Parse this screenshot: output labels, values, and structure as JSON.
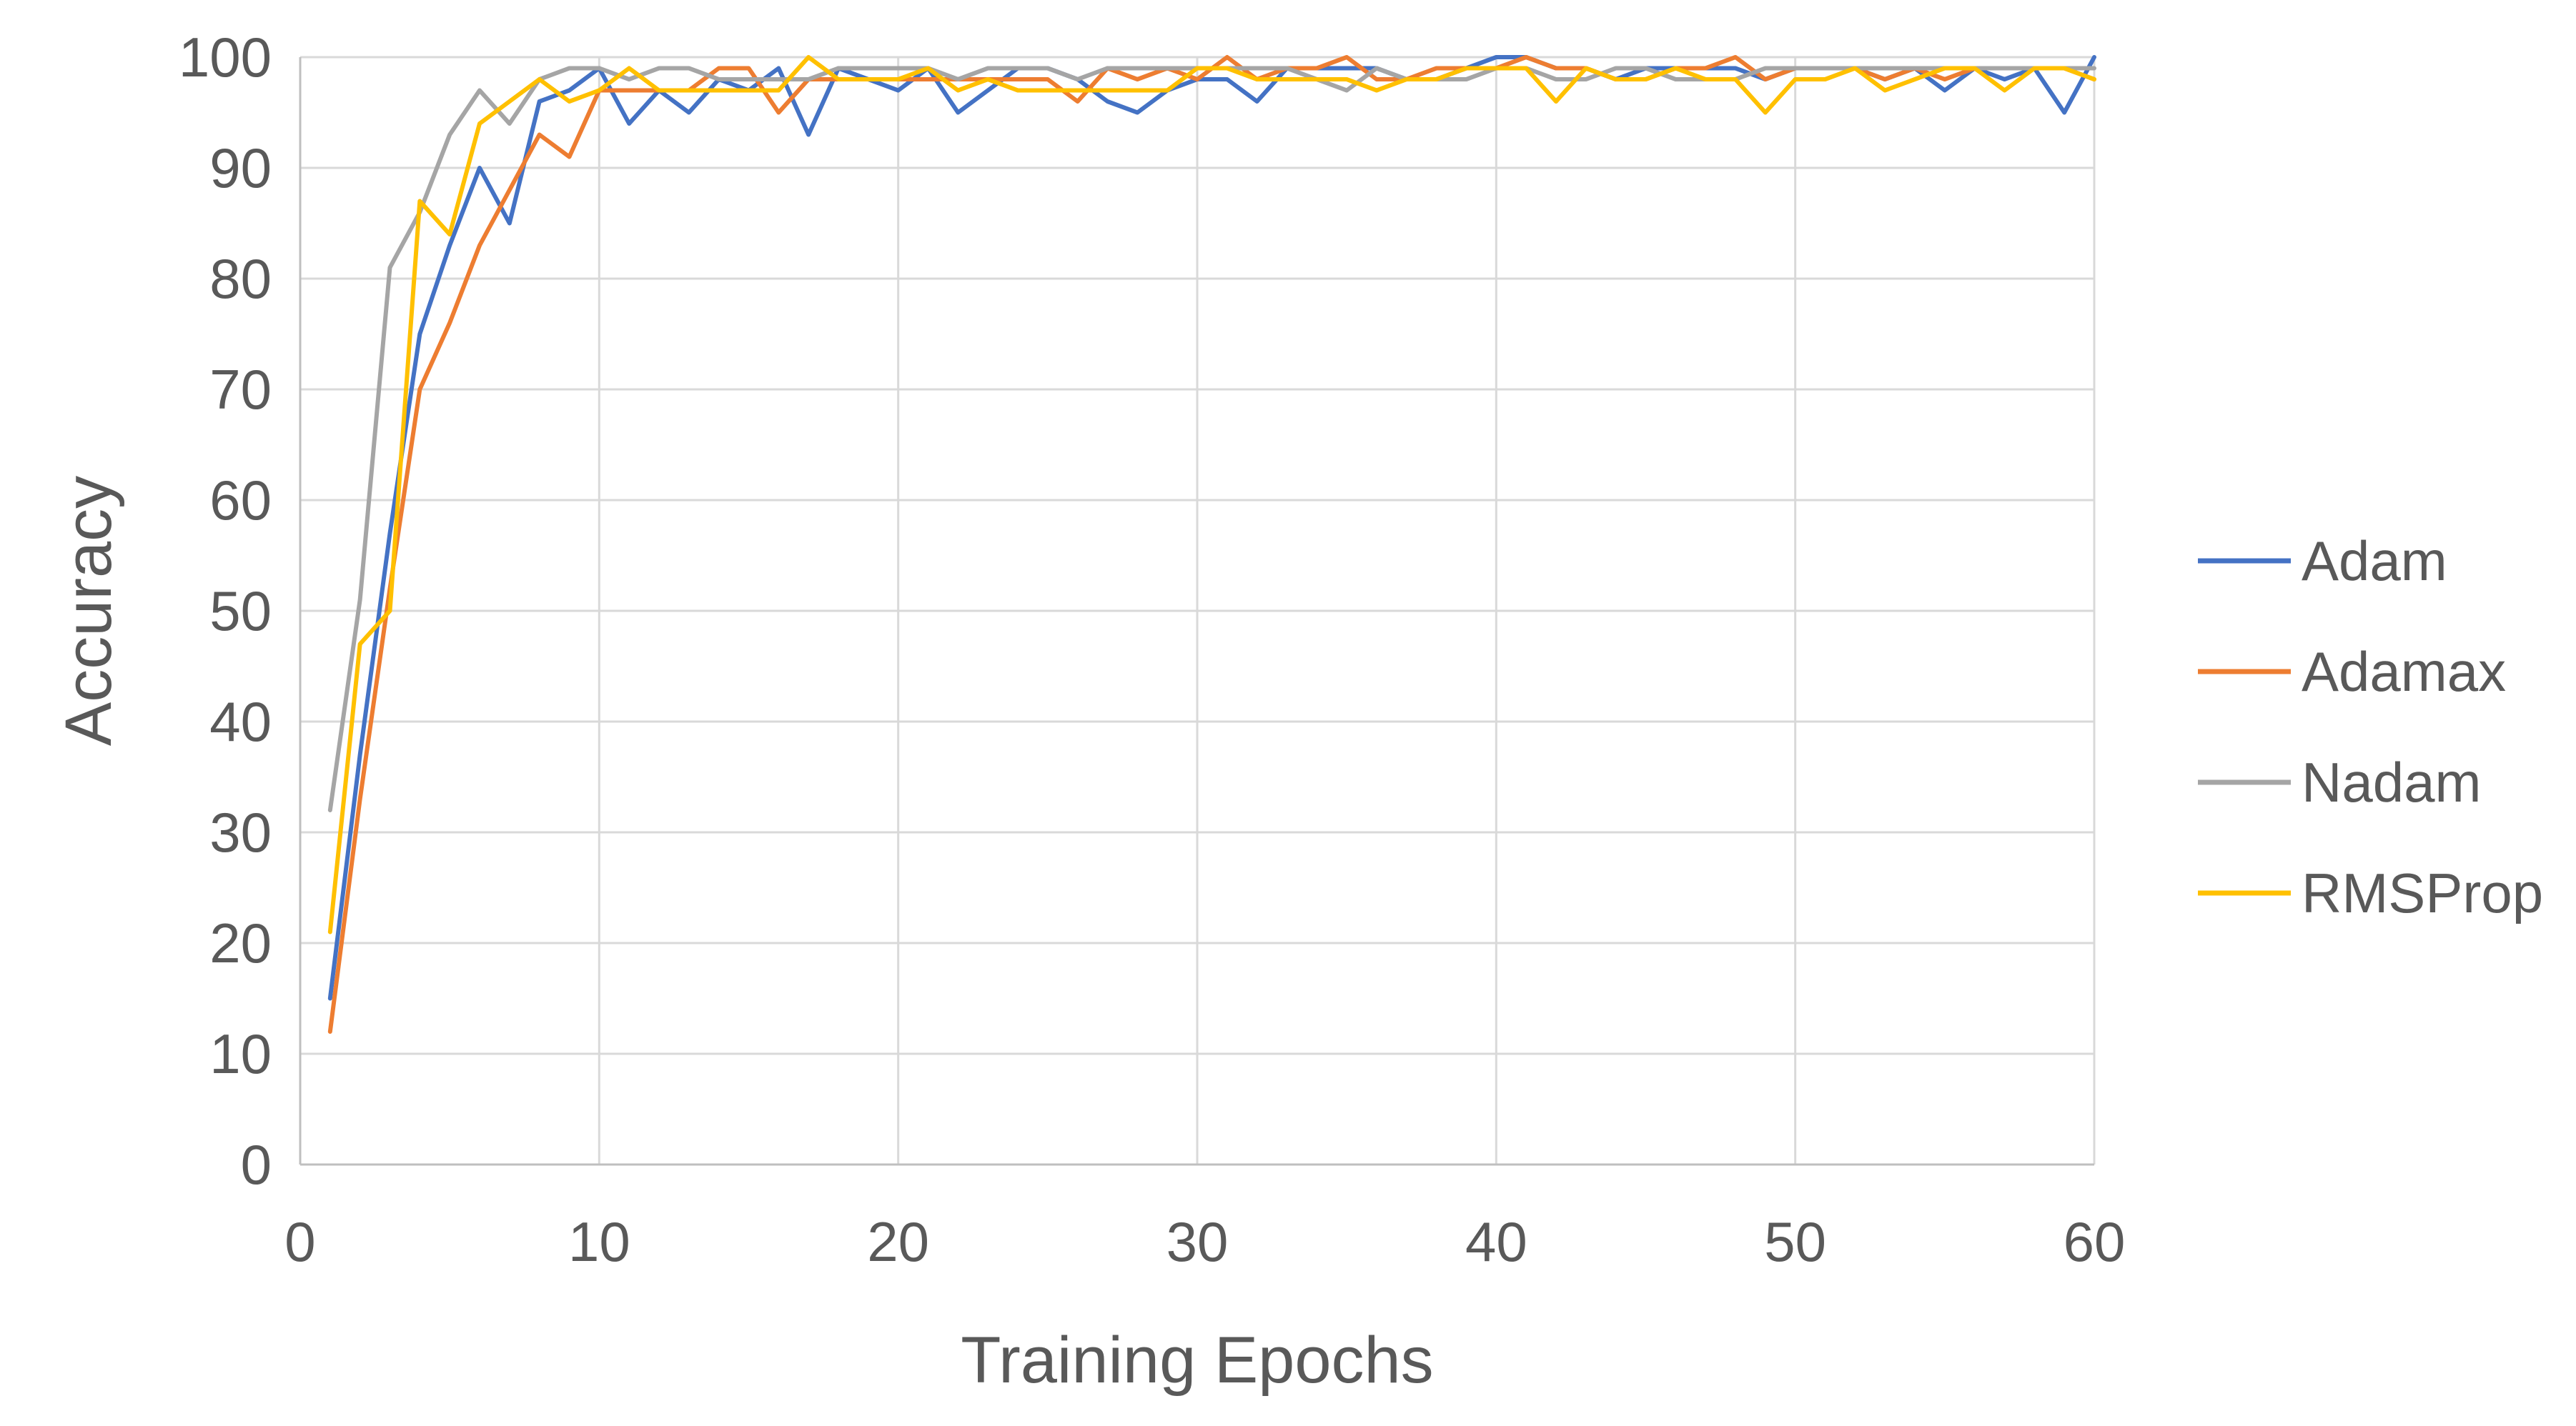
{
  "chart_data": {
    "type": "line",
    "title": "",
    "xlabel": "Training Epochs",
    "ylabel": "Accuracy",
    "xlim": [
      0,
      60
    ],
    "ylim": [
      0,
      100
    ],
    "x_ticks": [
      "0",
      "10",
      "20",
      "30",
      "40",
      "50",
      "60"
    ],
    "y_ticks": [
      "0",
      "10",
      "20",
      "30",
      "40",
      "50",
      "60",
      "70",
      "80",
      "90",
      "100"
    ],
    "grid": true,
    "legend_position": "right",
    "x": [
      1,
      2,
      3,
      4,
      5,
      6,
      7,
      8,
      9,
      10,
      11,
      12,
      13,
      14,
      15,
      16,
      17,
      18,
      19,
      20,
      21,
      22,
      23,
      24,
      25,
      26,
      27,
      28,
      29,
      30,
      31,
      32,
      33,
      34,
      35,
      36,
      37,
      38,
      39,
      40,
      41,
      42,
      43,
      44,
      45,
      46,
      47,
      48,
      49,
      50,
      51,
      52,
      53,
      54,
      55,
      56,
      57,
      58,
      59,
      60
    ],
    "series": [
      {
        "name": "Adam",
        "color": "#4472C4",
        "values": [
          15,
          37,
          57,
          75,
          83,
          90,
          85,
          96,
          97,
          99,
          94,
          97,
          95,
          98,
          97,
          99,
          93,
          99,
          98,
          97,
          99,
          95,
          97,
          99,
          99,
          98,
          96,
          95,
          97,
          98,
          98,
          96,
          99,
          99,
          99,
          99,
          98,
          98,
          99,
          100,
          100,
          99,
          99,
          98,
          99,
          99,
          99,
          99,
          98,
          99,
          99,
          99,
          98,
          99,
          97,
          99,
          98,
          99,
          95,
          100
        ]
      },
      {
        "name": "Adamax",
        "color": "#ED7D31",
        "values": [
          12,
          33,
          52,
          70,
          76,
          83,
          88,
          93,
          91,
          97,
          97,
          97,
          97,
          99,
          99,
          95,
          98,
          98,
          98,
          98,
          98,
          98,
          98,
          98,
          98,
          96,
          99,
          98,
          99,
          98,
          100,
          98,
          99,
          99,
          100,
          98,
          98,
          99,
          99,
          99,
          100,
          99,
          99,
          98,
          98,
          99,
          99,
          100,
          98,
          99,
          99,
          99,
          98,
          99,
          98,
          99,
          99,
          99,
          99,
          98
        ]
      },
      {
        "name": "Nadam",
        "color": "#A5A5A5",
        "values": [
          32,
          51,
          81,
          86,
          93,
          97,
          94,
          98,
          99,
          99,
          98,
          99,
          99,
          98,
          98,
          98,
          98,
          99,
          99,
          99,
          99,
          98,
          99,
          99,
          99,
          98,
          99,
          99,
          99,
          99,
          99,
          99,
          99,
          98,
          97,
          99,
          98,
          98,
          98,
          99,
          99,
          98,
          98,
          99,
          99,
          98,
          98,
          98,
          99,
          99,
          99,
          99,
          99,
          99,
          99,
          99,
          99,
          99,
          99,
          99
        ]
      },
      {
        "name": "RMSProp",
        "color": "#FFC000",
        "values": [
          21,
          47,
          50,
          87,
          84,
          94,
          96,
          98,
          96,
          97,
          99,
          97,
          97,
          97,
          97,
          97,
          100,
          98,
          98,
          98,
          99,
          97,
          98,
          97,
          97,
          97,
          97,
          97,
          97,
          99,
          99,
          98,
          98,
          98,
          98,
          97,
          98,
          98,
          99,
          99,
          99,
          96,
          99,
          98,
          98,
          99,
          98,
          98,
          95,
          98,
          98,
          99,
          97,
          98,
          99,
          99,
          97,
          99,
          99,
          98
        ]
      }
    ]
  }
}
